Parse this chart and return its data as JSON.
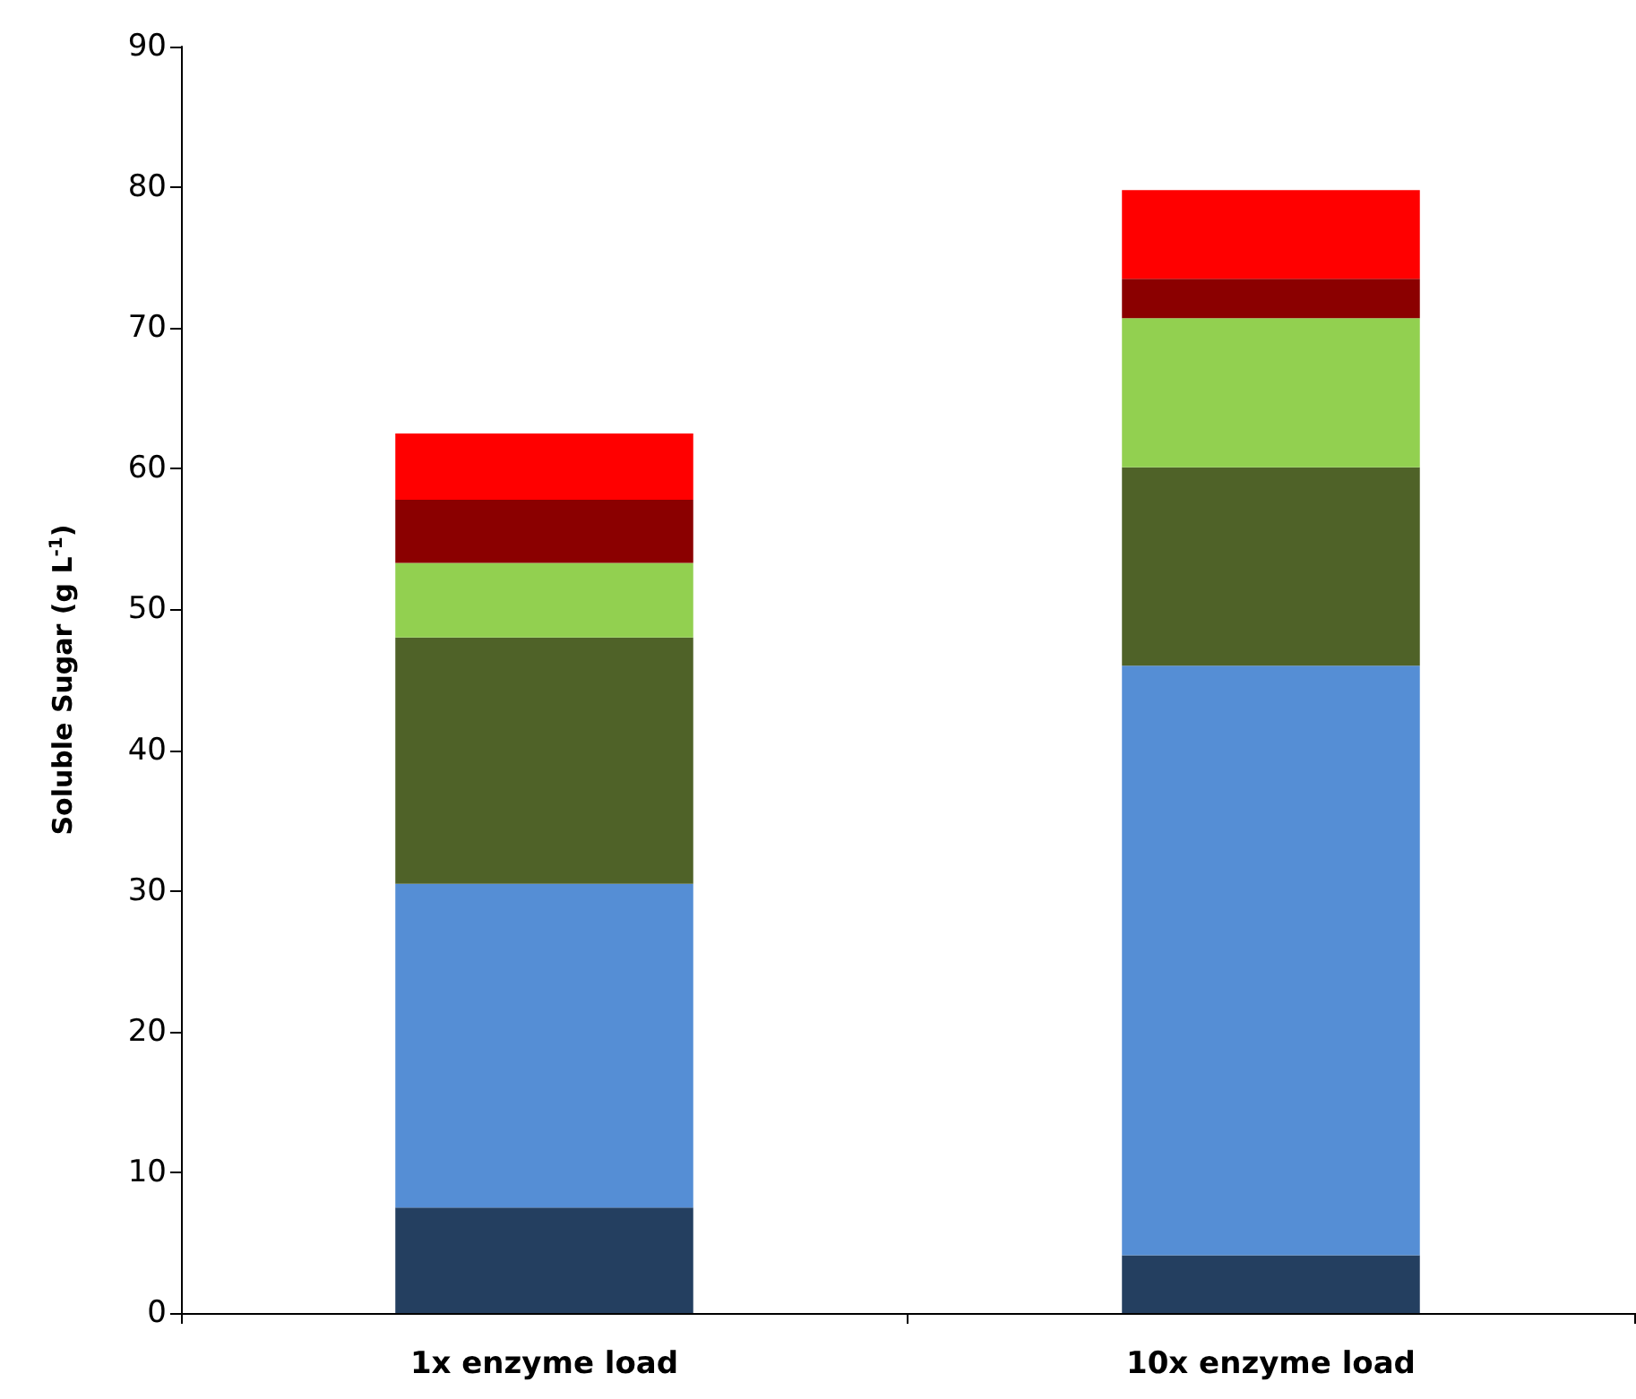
{
  "chart_data": {
    "type": "bar",
    "stacked": true,
    "ylabel": "Soluble Sugar (g L$^{-1}$)",
    "categories": [
      "1x enzyme load",
      "10x enzyme load"
    ],
    "series": [
      {
        "color": "#243f60",
        "values": [
          7.5,
          4.1
        ]
      },
      {
        "color": "#558ed5",
        "values": [
          23.0,
          41.9
        ]
      },
      {
        "color": "#4f6228",
        "values": [
          17.5,
          14.1
        ]
      },
      {
        "color": "#92d050",
        "values": [
          5.3,
          10.6
        ]
      },
      {
        "color": "#8b0000",
        "values": [
          4.5,
          2.8
        ]
      },
      {
        "color": "#ff0000",
        "values": [
          4.7,
          6.3
        ]
      }
    ],
    "ylim": [
      0,
      90
    ],
    "yticks": [
      0,
      10,
      20,
      30,
      40,
      50,
      60,
      70,
      80,
      90
    ],
    "grid": false
  }
}
